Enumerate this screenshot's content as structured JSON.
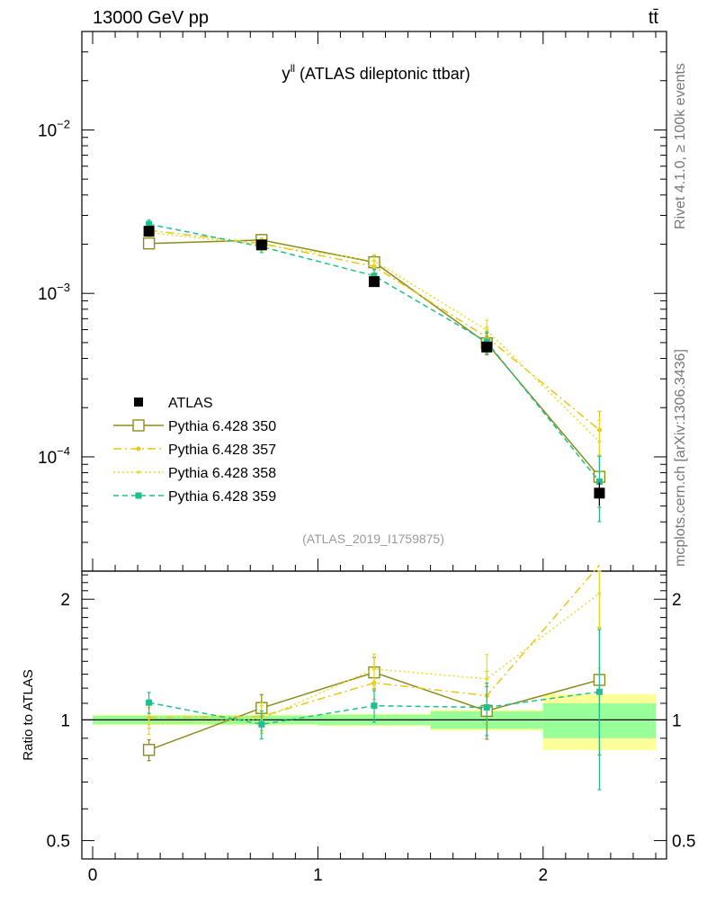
{
  "header": {
    "energy_label": "13000 GeV pp",
    "process_label": "tt̄"
  },
  "side": {
    "rivet_label": "Rivet 4.1.0, ≥ 100k events",
    "mcplots_label": "mcplots.cern.ch [arXiv:1306.3436]"
  },
  "chart_data": {
    "type": "line",
    "title_main": "y",
    "title_sup": "ll",
    "title_rest": " (ATLAS dileptonic ttbar)",
    "analysis_id": "(ATLAS_2019_I1759875)",
    "ylabel_ratio": "Ratio to ATLAS",
    "xlim": [
      0,
      2.5
    ],
    "ylim_main": [
      2e-05,
      0.04
    ],
    "ylim_ratio": [
      0.45,
      2.35
    ],
    "x_ticks": [
      "0",
      "1",
      "2"
    ],
    "y_ticks_main": [
      {
        "mantissa": "10",
        "exp": "−2"
      },
      {
        "mantissa": "10",
        "exp": "−3"
      },
      {
        "mantissa": "10",
        "exp": "−4"
      }
    ],
    "y_ticks_ratio": [
      "2",
      "1",
      "0.5"
    ],
    "x_centers": [
      0.25,
      0.75,
      1.25,
      1.75,
      2.25
    ],
    "x_edges": [
      0,
      0.5,
      1.0,
      1.5,
      2.0,
      2.5
    ],
    "data": {
      "name": "ATLAS",
      "values": [
        0.0024,
        0.00198,
        0.00118,
        0.00047,
        6e-05
      ],
      "stat_rel": [
        0.025,
        0.025,
        0.03,
        0.05,
        0.1
      ],
      "total_rel": [
        0.03,
        0.03,
        0.035,
        0.06,
        0.16
      ]
    },
    "series": [
      {
        "name": "Pythia 6.428 350",
        "color": "#8b8b1a",
        "dash": "",
        "marker": "open-square",
        "values": [
          0.00202,
          0.00212,
          0.00155,
          0.000495,
          7.55e-05
        ],
        "err_rel": [
          0.06,
          0.08,
          0.09,
          0.15,
          0.35
        ]
      },
      {
        "name": "Pythia 6.428 357",
        "color": "#e6c619",
        "dash": "9,4,2,4",
        "marker": "star",
        "values": [
          0.00243,
          0.00202,
          0.00146,
          0.00054,
          0.000146
        ],
        "err_rel": [
          0.06,
          0.08,
          0.09,
          0.15,
          0.3
        ]
      },
      {
        "name": "Pythia 6.428 358",
        "color": "#e8dd21",
        "dash": "2,3",
        "marker": "dot",
        "values": [
          0.00235,
          0.00199,
          0.00158,
          0.000595,
          0.000124
        ],
        "err_rel": [
          0.06,
          0.08,
          0.09,
          0.15,
          0.35
        ]
      },
      {
        "name": "Pythia 6.428 359",
        "color": "#1fbf8f",
        "dash": "6,4",
        "marker": "filled-square",
        "values": [
          0.00265,
          0.00193,
          0.00128,
          0.000505,
          7.05e-05
        ],
        "err_rel": [
          0.06,
          0.08,
          0.09,
          0.15,
          0.43
        ]
      }
    ]
  }
}
